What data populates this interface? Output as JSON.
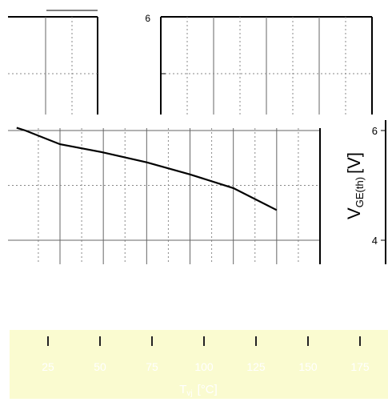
{
  "chart_data": [
    {
      "type": "line",
      "panel": "top-left",
      "title": "",
      "xlabel": "",
      "ylabel": "",
      "series": [
        {
          "x": [],
          "y": []
        }
      ]
    },
    {
      "type": "line",
      "panel": "top-right",
      "title": "",
      "xlabel": "",
      "ylabel": "",
      "yticks": [
        "6"
      ],
      "series": [
        {
          "x": [],
          "y": []
        }
      ]
    },
    {
      "type": "line",
      "panel": "main",
      "title": "",
      "xlabel": "T",
      "xlabel_sub": "vj",
      "x_unit": "[°C]",
      "ylabel": "V",
      "ylabel_sub": "GE(th)",
      "y_unit": "[V]",
      "xticks": [
        25,
        50,
        75,
        100,
        125,
        150,
        175
      ],
      "yticks": [
        4,
        6
      ],
      "xlim": [
        25,
        175
      ],
      "ylim": [
        3.6,
        6.3
      ],
      "grid": true,
      "legend": "none",
      "series": [
        {
          "color": "#000000",
          "x": [
            25,
            30,
            50,
            75,
            100,
            125,
            150,
            175
          ],
          "y": [
            6.05,
            6.0,
            5.75,
            5.6,
            5.42,
            5.2,
            4.95,
            4.55
          ]
        }
      ]
    }
  ]
}
